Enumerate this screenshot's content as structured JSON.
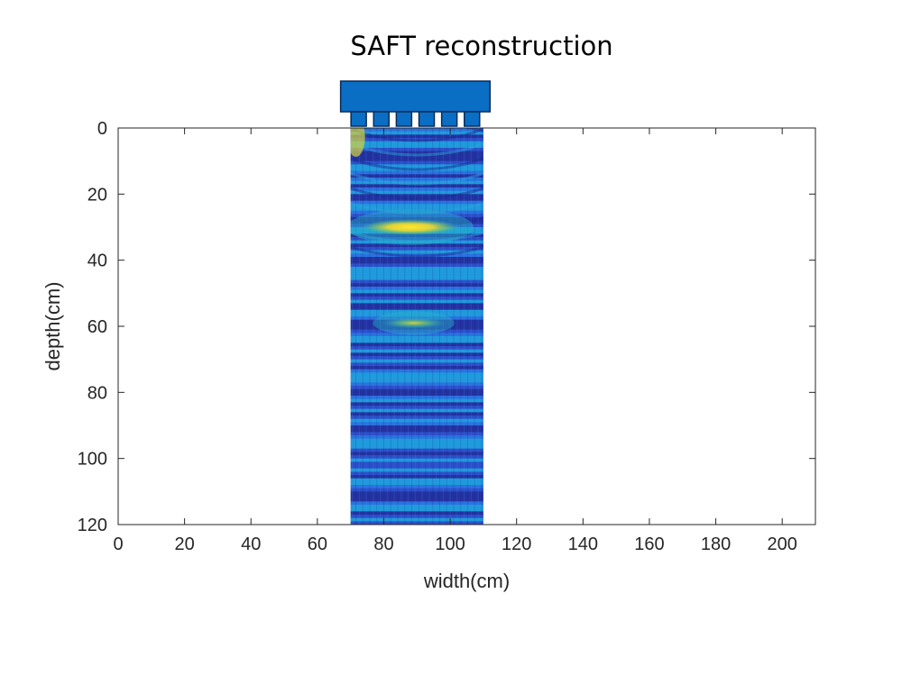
{
  "chart_data": {
    "type": "heatmap",
    "title": "SAFT reconstruction",
    "xlabel": "width(cm)",
    "ylabel": "depth(cm)",
    "xlim": [
      0,
      210
    ],
    "ylim": [
      0,
      120
    ],
    "y_reversed": true,
    "x_ticks": [
      "0",
      "20",
      "40",
      "60",
      "80",
      "100",
      "120",
      "140",
      "160",
      "180",
      "200"
    ],
    "y_ticks": [
      "0",
      "20",
      "40",
      "60",
      "80",
      "100",
      "120"
    ],
    "image_extent": {
      "x": [
        70,
        110
      ],
      "y": [
        0,
        120
      ]
    },
    "colormap": "parula",
    "colors": {
      "low": "#2a3fbf",
      "mid": "#1aa8d8",
      "high": "#f5e32a",
      "transducer": "#0a6ec4"
    },
    "transducer": {
      "x": [
        67,
        112
      ],
      "elements": 6
    },
    "reflectors": [
      {
        "x": 88,
        "y": 30,
        "intensity": 1.0
      },
      {
        "x": 89,
        "y": 59,
        "intensity": 0.7
      }
    ],
    "grid": false
  }
}
